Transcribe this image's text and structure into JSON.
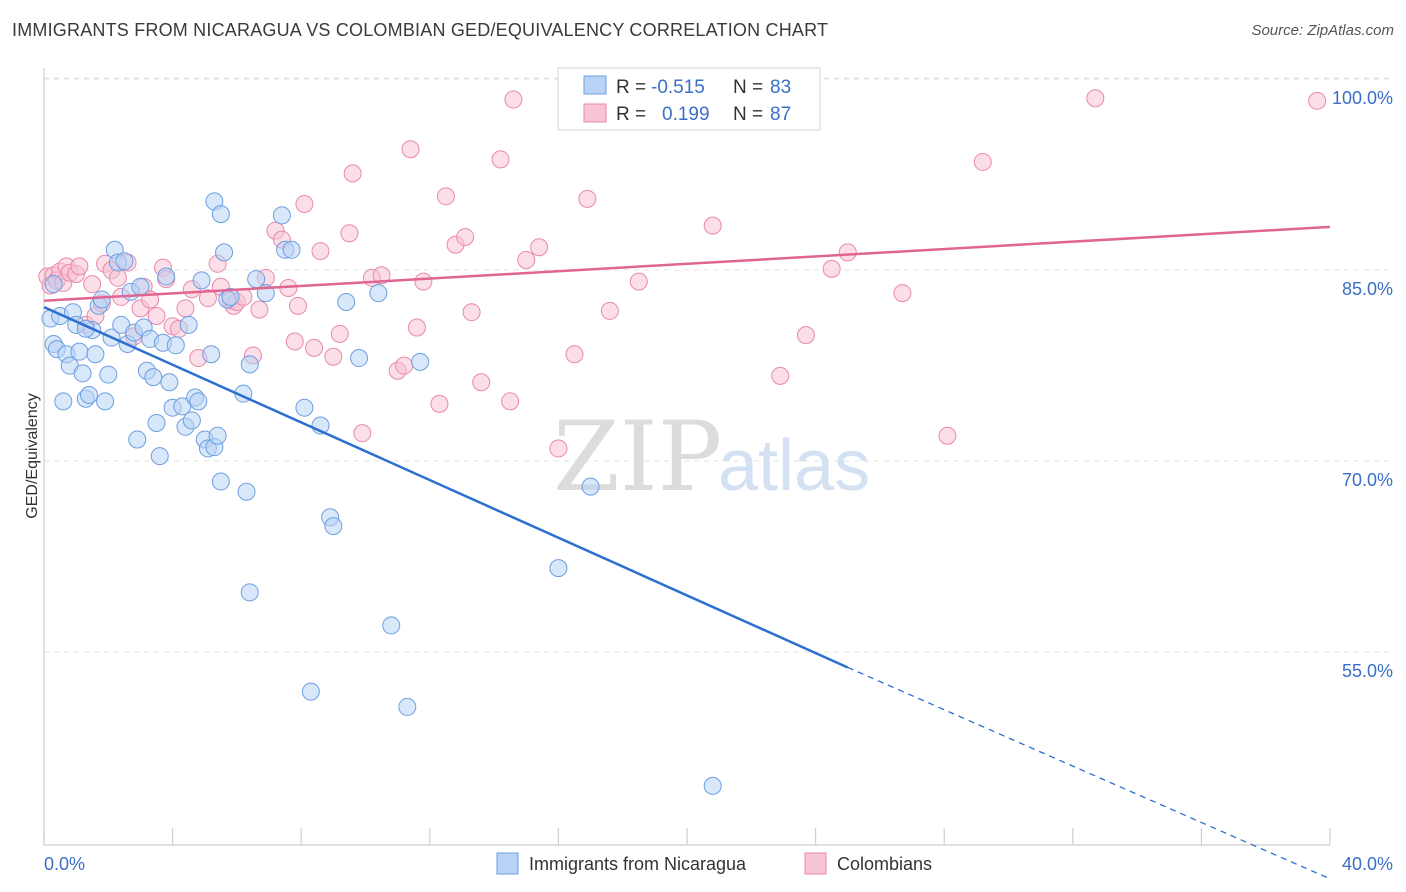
{
  "header": {
    "title": "IMMIGRANTS FROM NICARAGUA VS COLOMBIAN GED/EQUIVALENCY CORRELATION CHART",
    "source": "Source: ZipAtlas.com"
  },
  "watermark": {
    "zip": "ZIP",
    "atlas": "atlas"
  },
  "legend": {
    "rows": [
      {
        "r_label": "R = ",
        "r_value": "-0.515",
        "n_label": "N = ",
        "n_value": "83"
      },
      {
        "r_label": "R = ",
        "r_value": "0.199",
        "n_label": "N = ",
        "n_value": "87"
      }
    ]
  },
  "bottom_legend": [
    "Immigrants from Nicaragua",
    "Colombians"
  ],
  "colors": {
    "blue_fill": "#b8d3f5",
    "blue_stroke": "#6d9fe0",
    "blue_line": "#2b6fd0",
    "pink_fill": "#f8c3d4",
    "pink_stroke": "#e88aaa",
    "pink_line": "#e06592",
    "tick_text": "#3a6fc5",
    "grid": "#e2e2e2"
  },
  "chart_data": {
    "type": "scatter",
    "title": "IMMIGRANTS FROM NICARAGUA VS COLOMBIAN GED/EQUIVALENCY CORRELATION CHART",
    "xlabel": "",
    "ylabel": "GED/Equivalency",
    "xlim": [
      0,
      40
    ],
    "ylim": [
      40,
      101
    ],
    "x_tick_labels": [
      "0.0%",
      "40.0%"
    ],
    "y_ticks": [
      55,
      70,
      85,
      100
    ],
    "y_tick_labels": [
      "55.0%",
      "70.0%",
      "85.0%",
      "100.0%"
    ],
    "grid": true,
    "legend_position": "top-center",
    "series": [
      {
        "name": "Immigrants from Nicaragua",
        "r": -0.515,
        "n": 83,
        "trend": {
          "x0": 0,
          "y0": 83.5,
          "x1": 25,
          "y1": 55.2,
          "dashed_to_x": 40,
          "dashed_to_y": 38.6
        },
        "points": [
          [
            0.2,
            82.6
          ],
          [
            0.3,
            80.6
          ],
          [
            0.4,
            80.2
          ],
          [
            0.5,
            82.8
          ],
          [
            0.6,
            76.1
          ],
          [
            0.7,
            79.8
          ],
          [
            0.8,
            78.9
          ],
          [
            0.9,
            83.1
          ],
          [
            1.0,
            82.1
          ],
          [
            1.1,
            80.0
          ],
          [
            1.2,
            78.3
          ],
          [
            1.3,
            76.3
          ],
          [
            1.4,
            76.6
          ],
          [
            1.5,
            81.7
          ],
          [
            1.6,
            79.8
          ],
          [
            1.7,
            83.6
          ],
          [
            1.8,
            84.1
          ],
          [
            1.9,
            76.1
          ],
          [
            2.0,
            78.2
          ],
          [
            2.1,
            81.1
          ],
          [
            2.2,
            88.0
          ],
          [
            2.3,
            87.0
          ],
          [
            2.4,
            82.1
          ],
          [
            2.5,
            87.1
          ],
          [
            2.6,
            80.6
          ],
          [
            2.7,
            84.7
          ],
          [
            2.8,
            81.5
          ],
          [
            2.9,
            73.1
          ],
          [
            3.0,
            85.1
          ],
          [
            3.1,
            81.9
          ],
          [
            3.2,
            78.5
          ],
          [
            3.3,
            81.0
          ],
          [
            3.4,
            78.0
          ],
          [
            3.5,
            74.4
          ],
          [
            3.6,
            71.8
          ],
          [
            3.7,
            80.7
          ],
          [
            3.8,
            85.9
          ],
          [
            3.9,
            77.6
          ],
          [
            4.0,
            75.6
          ],
          [
            4.1,
            80.5
          ],
          [
            4.3,
            75.7
          ],
          [
            4.4,
            74.1
          ],
          [
            4.5,
            82.1
          ],
          [
            4.6,
            74.6
          ],
          [
            4.7,
            76.4
          ],
          [
            4.8,
            76.1
          ],
          [
            4.9,
            85.6
          ],
          [
            5.0,
            73.1
          ],
          [
            5.1,
            72.4
          ],
          [
            5.2,
            79.8
          ],
          [
            5.3,
            72.5
          ],
          [
            5.4,
            73.4
          ],
          [
            5.5,
            69.8
          ],
          [
            5.6,
            87.8
          ],
          [
            5.7,
            84.1
          ],
          [
            5.8,
            84.3
          ],
          [
            5.3,
            91.8
          ],
          [
            5.5,
            90.8
          ],
          [
            6.2,
            76.7
          ],
          [
            6.3,
            69.0
          ],
          [
            6.4,
            79.0
          ],
          [
            6.6,
            85.7
          ],
          [
            6.9,
            84.6
          ],
          [
            7.5,
            88.0
          ],
          [
            7.4,
            90.7
          ],
          [
            7.7,
            88.0
          ],
          [
            8.1,
            75.6
          ],
          [
            8.6,
            74.2
          ],
          [
            8.9,
            67.0
          ],
          [
            9.0,
            66.3
          ],
          [
            9.4,
            83.9
          ],
          [
            9.8,
            79.5
          ],
          [
            10.4,
            84.6
          ],
          [
            10.8,
            58.5
          ],
          [
            11.3,
            52.1
          ],
          [
            11.7,
            79.2
          ],
          [
            6.4,
            61.1
          ],
          [
            8.3,
            53.3
          ],
          [
            16.0,
            63.0
          ],
          [
            17.0,
            69.4
          ],
          [
            20.8,
            45.9
          ],
          [
            0.3,
            85.3
          ],
          [
            1.3,
            81.8
          ]
        ]
      },
      {
        "name": "Colombians",
        "r": 0.199,
        "n": 87,
        "trend": {
          "x0": 0,
          "y0": 84.0,
          "x1": 40,
          "y1": 89.8
        },
        "points": [
          [
            0.1,
            85.9
          ],
          [
            0.2,
            85.2
          ],
          [
            0.3,
            86.0
          ],
          [
            0.4,
            85.6
          ],
          [
            0.5,
            86.3
          ],
          [
            0.6,
            85.4
          ],
          [
            0.7,
            86.7
          ],
          [
            0.8,
            86.2
          ],
          [
            1.0,
            86.1
          ],
          [
            1.1,
            86.7
          ],
          [
            1.3,
            82.1
          ],
          [
            1.5,
            85.3
          ],
          [
            1.6,
            82.8
          ],
          [
            1.8,
            83.8
          ],
          [
            1.9,
            86.9
          ],
          [
            2.1,
            86.4
          ],
          [
            2.3,
            85.8
          ],
          [
            2.4,
            84.3
          ],
          [
            2.6,
            87.0
          ],
          [
            2.8,
            81.2
          ],
          [
            3.0,
            83.4
          ],
          [
            3.1,
            85.1
          ],
          [
            3.3,
            84.1
          ],
          [
            3.5,
            82.8
          ],
          [
            3.7,
            86.6
          ],
          [
            3.8,
            85.7
          ],
          [
            4.0,
            82.0
          ],
          [
            4.2,
            81.8
          ],
          [
            4.4,
            83.4
          ],
          [
            4.6,
            84.9
          ],
          [
            4.8,
            79.5
          ],
          [
            5.1,
            84.2
          ],
          [
            5.4,
            86.9
          ],
          [
            5.5,
            85.1
          ],
          [
            5.8,
            84.0
          ],
          [
            5.9,
            83.6
          ],
          [
            6.0,
            83.9
          ],
          [
            6.2,
            84.3
          ],
          [
            6.5,
            79.7
          ],
          [
            6.7,
            83.3
          ],
          [
            6.9,
            85.8
          ],
          [
            7.2,
            89.5
          ],
          [
            7.4,
            88.8
          ],
          [
            7.6,
            85.0
          ],
          [
            7.8,
            80.8
          ],
          [
            7.9,
            83.6
          ],
          [
            8.1,
            91.6
          ],
          [
            8.4,
            80.3
          ],
          [
            8.6,
            87.9
          ],
          [
            9.0,
            79.6
          ],
          [
            9.2,
            81.4
          ],
          [
            9.5,
            89.3
          ],
          [
            9.9,
            73.6
          ],
          [
            10.2,
            85.8
          ],
          [
            10.5,
            86.0
          ],
          [
            11.0,
            78.5
          ],
          [
            11.2,
            78.9
          ],
          [
            11.6,
            81.9
          ],
          [
            11.8,
            85.5
          ],
          [
            12.3,
            75.9
          ],
          [
            12.5,
            92.2
          ],
          [
            12.8,
            88.4
          ],
          [
            13.1,
            89.0
          ],
          [
            13.3,
            83.1
          ],
          [
            13.6,
            77.6
          ],
          [
            14.2,
            95.1
          ],
          [
            14.5,
            76.1
          ],
          [
            15.0,
            87.2
          ],
          [
            15.4,
            88.2
          ],
          [
            16.0,
            72.4
          ],
          [
            16.5,
            79.8
          ],
          [
            16.9,
            92.0
          ],
          [
            17.6,
            83.2
          ],
          [
            18.5,
            85.5
          ],
          [
            20.8,
            89.9
          ],
          [
            22.9,
            78.1
          ],
          [
            23.7,
            81.3
          ],
          [
            24.5,
            86.5
          ],
          [
            25.0,
            87.8
          ],
          [
            26.7,
            84.6
          ],
          [
            28.1,
            73.4
          ],
          [
            29.2,
            94.9
          ],
          [
            32.7,
            99.9
          ],
          [
            39.6,
            99.7
          ],
          [
            14.6,
            99.8
          ],
          [
            11.4,
            95.9
          ],
          [
            9.6,
            94.0
          ]
        ]
      }
    ]
  }
}
